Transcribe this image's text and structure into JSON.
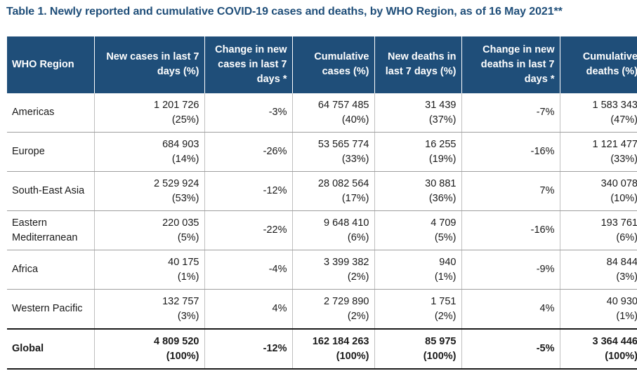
{
  "title": "Table 1. Newly reported and cumulative COVID-19 cases and deaths, by WHO Region, as of 16 May 2021**",
  "headers": [
    "WHO Region",
    "New cases in last 7 days (%)",
    "Change in new cases in last 7 days *",
    "Cumulative cases (%)",
    "New deaths in last 7 days (%)",
    "Change in new deaths in last 7 days *",
    "Cumulative deaths (%)"
  ],
  "rows": [
    {
      "region": "Americas",
      "new_cases": "1 201 726",
      "new_cases_pct": "(25%)",
      "change_cases": "-3%",
      "cum_cases": "64 757 485",
      "cum_cases_pct": "(40%)",
      "new_deaths": "31 439",
      "new_deaths_pct": "(37%)",
      "change_deaths": "-7%",
      "cum_deaths": "1 583 343",
      "cum_deaths_pct": "(47%)"
    },
    {
      "region": "Europe",
      "new_cases": "684 903",
      "new_cases_pct": "(14%)",
      "change_cases": "-26%",
      "cum_cases": "53 565 774",
      "cum_cases_pct": "(33%)",
      "new_deaths": "16 255",
      "new_deaths_pct": "(19%)",
      "change_deaths": "-16%",
      "cum_deaths": "1 121 477",
      "cum_deaths_pct": "(33%)"
    },
    {
      "region": "South-East Asia",
      "new_cases": "2 529 924",
      "new_cases_pct": "(53%)",
      "change_cases": "-12%",
      "cum_cases": "28 082 564",
      "cum_cases_pct": "(17%)",
      "new_deaths": "30 881",
      "new_deaths_pct": "(36%)",
      "change_deaths": "7%",
      "cum_deaths": "340 078",
      "cum_deaths_pct": "(10%)"
    },
    {
      "region": "Eastern Mediterranean",
      "region_line1": "Eastern",
      "region_line2": "Mediterranean",
      "new_cases": "220 035",
      "new_cases_pct": "(5%)",
      "change_cases": "-22%",
      "cum_cases": "9 648 410",
      "cum_cases_pct": "(6%)",
      "new_deaths": "4 709",
      "new_deaths_pct": "(5%)",
      "change_deaths": "-16%",
      "cum_deaths": "193 761",
      "cum_deaths_pct": "(6%)"
    },
    {
      "region": "Africa",
      "new_cases": "40 175",
      "new_cases_pct": "(1%)",
      "change_cases": "-4%",
      "cum_cases": "3 399 382",
      "cum_cases_pct": "(2%)",
      "new_deaths": "940",
      "new_deaths_pct": "(1%)",
      "change_deaths": "-9%",
      "cum_deaths": "84 844",
      "cum_deaths_pct": "(3%)"
    },
    {
      "region": "Western Pacific",
      "new_cases": "132 757",
      "new_cases_pct": "(3%)",
      "change_cases": "4%",
      "cum_cases": "2 729 890",
      "cum_cases_pct": "(2%)",
      "new_deaths": "1 751",
      "new_deaths_pct": "(2%)",
      "change_deaths": "4%",
      "cum_deaths": "40 930",
      "cum_deaths_pct": "(1%)"
    }
  ],
  "global": {
    "region": "Global",
    "new_cases": "4 809 520",
    "new_cases_pct": "(100%)",
    "change_cases": "-12%",
    "cum_cases": "162 184 263",
    "cum_cases_pct": "(100%)",
    "new_deaths": "85 975",
    "new_deaths_pct": "(100%)",
    "change_deaths": "-5%",
    "cum_deaths": "3 364 446",
    "cum_deaths_pct": "(100%)"
  },
  "colors": {
    "header_bg": "#1f4e79",
    "title": "#1f4e79",
    "header_text": "#ffffff"
  }
}
